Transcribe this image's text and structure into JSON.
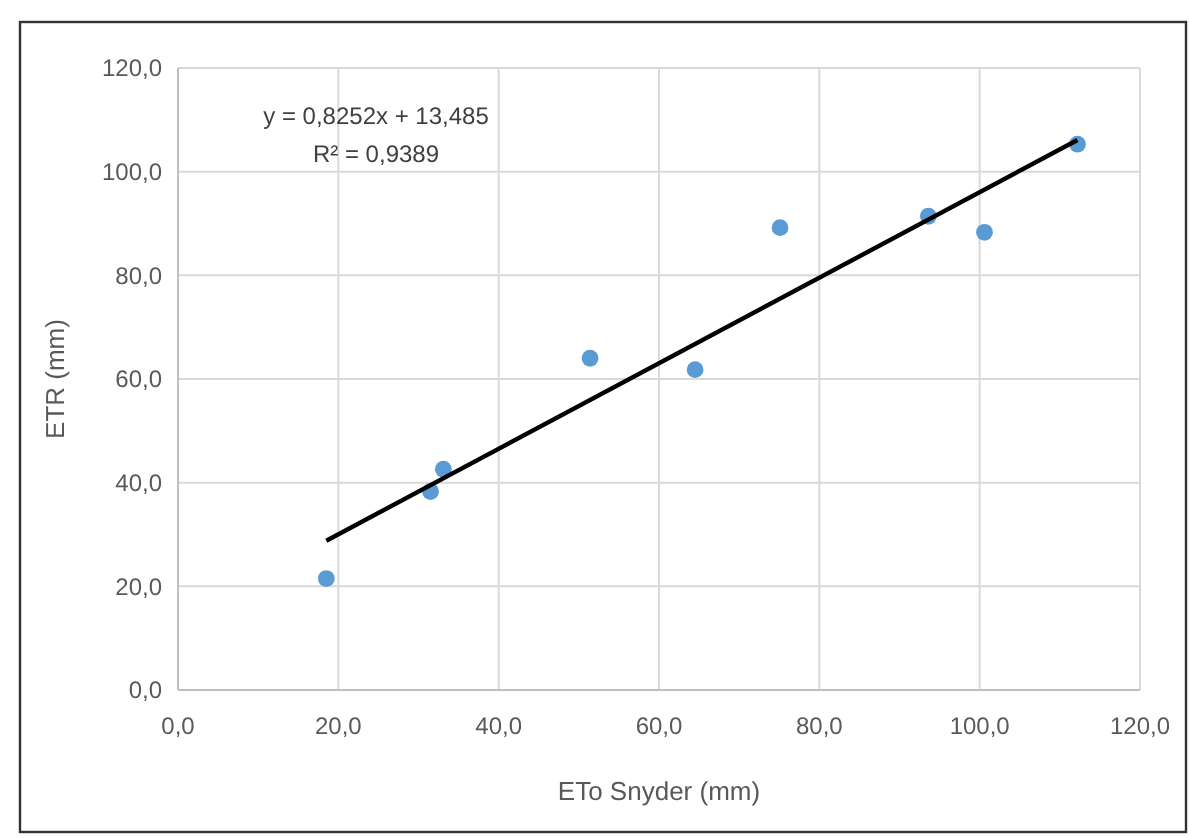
{
  "chart_data": {
    "type": "scatter",
    "xlabel": "ETo Snyder (mm)",
    "ylabel": "ETR (mm)",
    "xlim": [
      0,
      120
    ],
    "ylim": [
      0,
      120
    ],
    "xticks": [
      {
        "value": 0,
        "label": "0,0"
      },
      {
        "value": 20,
        "label": "20,0"
      },
      {
        "value": 40,
        "label": "40,0"
      },
      {
        "value": 60,
        "label": "60,0"
      },
      {
        "value": 80,
        "label": "80,0"
      },
      {
        "value": 100,
        "label": "100,0"
      },
      {
        "value": 120,
        "label": "120,0"
      }
    ],
    "yticks": [
      {
        "value": 0,
        "label": "0,0"
      },
      {
        "value": 20,
        "label": "20,0"
      },
      {
        "value": 40,
        "label": "40,0"
      },
      {
        "value": 60,
        "label": "60,0"
      },
      {
        "value": 80,
        "label": "80,0"
      },
      {
        "value": 100,
        "label": "100,0"
      },
      {
        "value": 120,
        "label": "120,0"
      }
    ],
    "grid": true,
    "marker": "circle",
    "series": [
      {
        "color": "#5b9bd5",
        "x": [
          18.5,
          31.5,
          33.1,
          51.4,
          64.5,
          75.1,
          93.6,
          100.6,
          112.2
        ],
        "values": [
          21.5,
          38.3,
          42.6,
          64.0,
          61.8,
          89.2,
          91.4,
          88.3,
          105.3
        ]
      },
      {
        "type": "line",
        "color": "#000000",
        "marker": "none",
        "x": [
          18.5,
          112.2
        ],
        "values": [
          28.8,
          106.1
        ]
      }
    ],
    "annotations": [
      {
        "text": "y = 0,8252x + 13,485"
      },
      {
        "text": "R² = 0,9389"
      }
    ]
  }
}
